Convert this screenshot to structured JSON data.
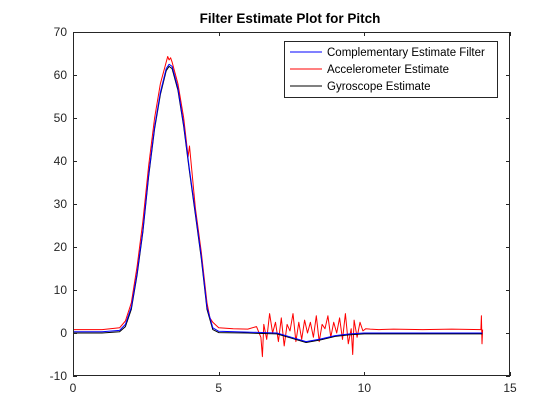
{
  "chart_data": {
    "type": "line",
    "title": "Filter Estimate Plot for Pitch",
    "xlabel": "",
    "ylabel": "",
    "xlim": [
      0,
      15
    ],
    "ylim": [
      -10,
      70
    ],
    "xticks": [
      0,
      5,
      10,
      15
    ],
    "yticks": [
      -10,
      0,
      10,
      20,
      30,
      40,
      50,
      60,
      70
    ],
    "grid": false,
    "legend_position": "top-right",
    "series": [
      {
        "name": "Complementary Estimate Filter",
        "color": "#0000ff",
        "x": [
          0.0,
          1.0,
          1.6,
          1.8,
          2.0,
          2.2,
          2.4,
          2.6,
          2.8,
          3.0,
          3.2,
          3.3,
          3.4,
          3.6,
          3.8,
          4.0,
          4.2,
          4.4,
          4.6,
          4.8,
          5.0,
          6.0,
          7.0,
          7.5,
          8.0,
          8.5,
          9.0,
          9.5,
          10.0,
          11.0,
          12.0,
          13.0,
          14.0,
          14.05
        ],
        "y": [
          0.3,
          0.3,
          0.6,
          2.0,
          6.0,
          14.0,
          24.0,
          37.0,
          48.0,
          56.0,
          61.5,
          62.5,
          62.0,
          57.0,
          48.5,
          38.0,
          28.0,
          18.0,
          6.0,
          1.2,
          0.4,
          0.2,
          0.0,
          -1.0,
          -2.0,
          -1.4,
          -0.6,
          -0.2,
          0.0,
          0.0,
          0.0,
          0.0,
          0.0,
          0.0
        ]
      },
      {
        "name": "Accelerometer Estimate",
        "color": "#ff0000",
        "x": [
          0.0,
          1.0,
          1.6,
          1.8,
          2.0,
          2.2,
          2.4,
          2.6,
          2.8,
          3.0,
          3.2,
          3.25,
          3.3,
          3.35,
          3.4,
          3.6,
          3.8,
          3.95,
          4.0,
          4.2,
          4.4,
          4.6,
          4.7,
          4.8,
          5.0,
          5.5,
          6.0,
          6.3,
          6.45,
          6.5,
          6.55,
          6.65,
          6.75,
          6.85,
          6.95,
          7.05,
          7.15,
          7.25,
          7.35,
          7.45,
          7.55,
          7.65,
          7.75,
          7.85,
          7.95,
          8.05,
          8.15,
          8.25,
          8.35,
          8.45,
          8.55,
          8.65,
          8.75,
          8.85,
          8.95,
          9.05,
          9.15,
          9.25,
          9.35,
          9.45,
          9.55,
          9.6,
          9.65,
          9.75,
          9.85,
          9.95,
          10.05,
          10.2,
          10.5,
          11.0,
          12.0,
          13.0,
          14.0,
          14.02,
          14.04,
          14.06
        ],
        "y": [
          0.8,
          0.8,
          1.2,
          2.8,
          7.0,
          15.5,
          26.0,
          39.0,
          50.0,
          58.0,
          63.0,
          64.3,
          63.5,
          64.0,
          63.0,
          58.0,
          50.0,
          41.0,
          43.5,
          29.0,
          19.0,
          7.0,
          3.5,
          2.5,
          1.2,
          1.0,
          0.9,
          1.5,
          -1.0,
          -5.5,
          2.0,
          -1.5,
          4.5,
          0.0,
          2.5,
          -2.0,
          3.5,
          -3.0,
          2.0,
          0.5,
          4.5,
          -2.0,
          2.5,
          -1.5,
          3.0,
          0.0,
          2.5,
          -1.0,
          4.0,
          -2.0,
          2.0,
          1.0,
          4.0,
          -1.0,
          2.5,
          0.0,
          3.5,
          -1.5,
          4.5,
          -2.5,
          1.0,
          -5.0,
          3.0,
          -1.0,
          2.5,
          0.5,
          1.0,
          0.9,
          0.8,
          0.9,
          0.8,
          0.9,
          0.8,
          4.0,
          -2.5,
          0.8
        ]
      },
      {
        "name": "Gyroscope Estimate",
        "color": "#000000",
        "x": [
          0.0,
          1.0,
          1.6,
          1.8,
          2.0,
          2.2,
          2.4,
          2.6,
          2.8,
          3.0,
          3.2,
          3.3,
          3.4,
          3.6,
          3.8,
          4.0,
          4.2,
          4.4,
          4.6,
          4.8,
          5.0,
          6.0,
          7.0,
          7.5,
          8.0,
          8.5,
          9.0,
          9.5,
          10.0,
          11.0,
          12.0,
          13.0,
          14.0,
          14.05
        ],
        "y": [
          0.0,
          0.0,
          0.3,
          1.5,
          5.5,
          13.5,
          23.5,
          36.5,
          47.5,
          55.5,
          61.0,
          62.0,
          61.5,
          56.5,
          48.0,
          37.5,
          27.5,
          17.5,
          5.5,
          0.8,
          0.1,
          0.0,
          -0.2,
          -1.2,
          -2.2,
          -1.6,
          -0.8,
          -0.4,
          -0.2,
          -0.2,
          -0.2,
          -0.2,
          -0.2,
          -0.2
        ]
      }
    ]
  }
}
